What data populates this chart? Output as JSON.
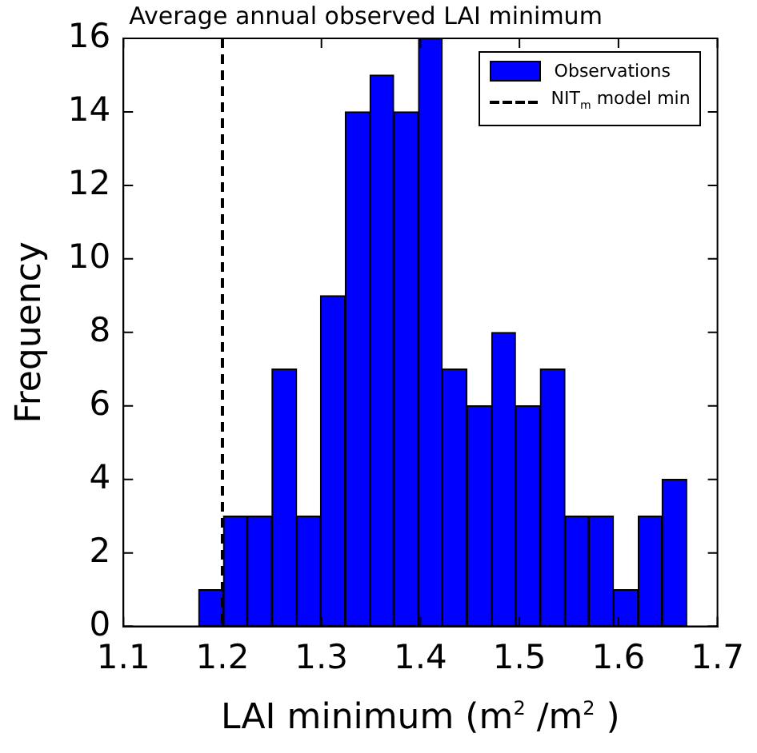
{
  "chart_data": {
    "type": "histogram",
    "title": "Average annual observed LAI minimum",
    "xlabel": "LAI minimum (m$^{2}$ /m$^{2}$ )",
    "ylabel": "Frequency",
    "bins": [
      1.176,
      1.201,
      1.225,
      1.25,
      1.275,
      1.299,
      1.324,
      1.349,
      1.373,
      1.398,
      1.422,
      1.447,
      1.472,
      1.496,
      1.521,
      1.546,
      1.57,
      1.595,
      1.62,
      1.644,
      1.669
    ],
    "series": [
      {
        "name": "Observations",
        "color": "#0000ff",
        "values": [
          1,
          3,
          3,
          7,
          3,
          9,
          14,
          15,
          14,
          16,
          7,
          6,
          8,
          6,
          7,
          3,
          3,
          1,
          3,
          4
        ]
      }
    ],
    "xlim": [
      1.1,
      1.7
    ],
    "xticks": [
      1.1,
      1.2,
      1.3,
      1.4,
      1.5,
      1.6,
      1.7
    ],
    "ylim": [
      0,
      16
    ],
    "yticks": [
      0,
      2,
      4,
      6,
      8,
      10,
      12,
      14,
      16
    ],
    "ref_lines": [
      {
        "axis": "x",
        "value": 1.2,
        "label": "NIT$_{m}$ model min",
        "color": "#000000",
        "line_style": "dashed"
      }
    ],
    "grid": false,
    "legend": "top right"
  }
}
